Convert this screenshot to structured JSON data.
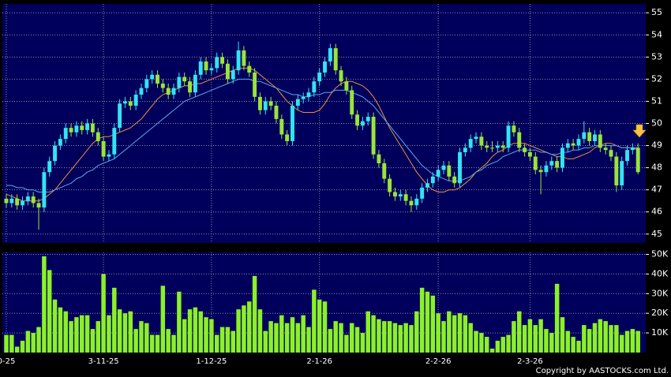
{
  "chart_data": {
    "type": "candlestick",
    "categories": [
      "0-25",
      null,
      null,
      null,
      null,
      null,
      null,
      null,
      null,
      null,
      null,
      null,
      null,
      null,
      null,
      null,
      null,
      null,
      "3-11-25",
      null,
      null,
      null,
      null,
      null,
      null,
      null,
      null,
      null,
      null,
      null,
      null,
      null,
      null,
      null,
      null,
      null,
      null,
      null,
      "1-12-25",
      null,
      null,
      null,
      null,
      null,
      null,
      null,
      null,
      null,
      null,
      null,
      null,
      null,
      null,
      null,
      null,
      null,
      null,
      null,
      "2-1-26",
      null,
      null,
      null,
      null,
      null,
      null,
      null,
      null,
      null,
      null,
      null,
      null,
      null,
      null,
      null,
      null,
      null,
      null,
      null,
      null,
      null,
      "2-2-26",
      null,
      null,
      null,
      null,
      null,
      null,
      null,
      null,
      null,
      null,
      null,
      null,
      null,
      null,
      null,
      null,
      "2-3-26",
      null,
      null,
      null,
      null,
      null,
      null,
      null,
      null,
      null,
      null,
      null,
      null,
      null,
      null,
      null,
      null,
      null,
      null,
      null,
      null
    ],
    "ohlc": [
      [
        46.6,
        46.8,
        46.2,
        46.4
      ],
      [
        46.4,
        46.8,
        46.2,
        46.6
      ],
      [
        46.6,
        46.8,
        46.1,
        46.3
      ],
      [
        46.3,
        46.7,
        46.1,
        46.5
      ],
      [
        46.5,
        46.9,
        46.3,
        46.7
      ],
      [
        46.7,
        46.9,
        46.2,
        46.4
      ],
      [
        46.4,
        46.6,
        45.2,
        46.2
      ],
      [
        46.2,
        48.0,
        46.0,
        47.8
      ],
      [
        47.8,
        48.5,
        47.6,
        48.3
      ],
      [
        48.3,
        49.2,
        48.1,
        49.0
      ],
      [
        49.0,
        49.5,
        48.8,
        49.3
      ],
      [
        49.3,
        50.0,
        49.1,
        49.8
      ],
      [
        49.8,
        50.0,
        49.4,
        49.6
      ],
      [
        49.6,
        50.1,
        49.4,
        49.9
      ],
      [
        49.9,
        50.1,
        49.5,
        49.7
      ],
      [
        49.7,
        50.2,
        49.5,
        50.0
      ],
      [
        50.0,
        50.2,
        49.4,
        49.6
      ],
      [
        49.6,
        49.8,
        49.0,
        49.2
      ],
      [
        49.2,
        49.4,
        48.3,
        48.5
      ],
      [
        48.5,
        48.8,
        48.3,
        48.6
      ],
      [
        48.6,
        50.0,
        48.4,
        49.8
      ],
      [
        49.8,
        51.1,
        49.6,
        50.9
      ],
      [
        50.9,
        51.2,
        50.7,
        51.0
      ],
      [
        51.0,
        51.2,
        50.6,
        50.8
      ],
      [
        50.8,
        51.5,
        50.6,
        51.3
      ],
      [
        51.3,
        51.8,
        51.1,
        51.6
      ],
      [
        51.6,
        52.2,
        51.4,
        52.0
      ],
      [
        52.0,
        52.4,
        51.8,
        52.2
      ],
      [
        52.2,
        52.4,
        51.6,
        51.8
      ],
      [
        51.8,
        52.0,
        51.4,
        51.6
      ],
      [
        51.6,
        51.8,
        51.1,
        51.3
      ],
      [
        51.3,
        51.8,
        51.1,
        51.6
      ],
      [
        51.6,
        52.3,
        51.4,
        52.1
      ],
      [
        52.1,
        52.3,
        51.7,
        51.9
      ],
      [
        51.9,
        52.1,
        51.2,
        51.4
      ],
      [
        51.4,
        52.4,
        51.2,
        52.2
      ],
      [
        52.2,
        53.0,
        52.0,
        52.8
      ],
      [
        52.8,
        53.0,
        52.2,
        52.4
      ],
      [
        52.4,
        52.7,
        52.2,
        52.5
      ],
      [
        52.5,
        53.2,
        52.3,
        53.0
      ],
      [
        53.0,
        53.2,
        52.5,
        52.7
      ],
      [
        52.7,
        52.9,
        51.8,
        52.0
      ],
      [
        52.0,
        52.6,
        51.8,
        52.4
      ],
      [
        52.4,
        53.7,
        52.2,
        53.3
      ],
      [
        53.3,
        53.5,
        52.4,
        52.6
      ],
      [
        52.6,
        52.8,
        52.1,
        52.3
      ],
      [
        52.3,
        52.5,
        51.0,
        51.2
      ],
      [
        51.2,
        51.4,
        50.4,
        50.6
      ],
      [
        50.6,
        51.2,
        50.4,
        51.0
      ],
      [
        51.0,
        51.2,
        50.6,
        50.8
      ],
      [
        50.8,
        51.0,
        50.0,
        50.2
      ],
      [
        50.2,
        50.4,
        49.3,
        49.5
      ],
      [
        49.5,
        49.7,
        49.0,
        49.2
      ],
      [
        49.2,
        51.0,
        49.0,
        50.8
      ],
      [
        50.8,
        51.3,
        50.6,
        51.1
      ],
      [
        51.1,
        51.4,
        50.9,
        51.2
      ],
      [
        51.2,
        51.6,
        51.0,
        51.4
      ],
      [
        51.4,
        52.1,
        51.2,
        51.9
      ],
      [
        51.9,
        52.5,
        51.7,
        52.3
      ],
      [
        52.3,
        53.0,
        52.1,
        52.8
      ],
      [
        52.8,
        53.6,
        52.6,
        53.4
      ],
      [
        53.4,
        53.6,
        52.2,
        52.4
      ],
      [
        52.4,
        52.6,
        51.7,
        51.9
      ],
      [
        51.9,
        52.1,
        51.3,
        51.5
      ],
      [
        51.5,
        51.7,
        50.2,
        50.4
      ],
      [
        50.4,
        50.6,
        49.7,
        49.9
      ],
      [
        49.9,
        50.3,
        49.7,
        50.1
      ],
      [
        50.1,
        50.5,
        49.9,
        50.3
      ],
      [
        50.3,
        50.5,
        48.4,
        48.6
      ],
      [
        48.6,
        48.8,
        48.0,
        48.2
      ],
      [
        48.2,
        48.4,
        47.3,
        47.5
      ],
      [
        47.5,
        47.7,
        46.7,
        46.9
      ],
      [
        46.9,
        47.1,
        46.5,
        46.7
      ],
      [
        46.7,
        47.0,
        46.5,
        46.8
      ],
      [
        46.8,
        47.0,
        46.3,
        46.5
      ],
      [
        46.5,
        46.7,
        46.0,
        46.3
      ],
      [
        46.3,
        46.8,
        46.1,
        46.6
      ],
      [
        46.6,
        47.3,
        46.4,
        47.1
      ],
      [
        47.1,
        47.5,
        46.9,
        47.3
      ],
      [
        47.3,
        47.8,
        47.1,
        47.6
      ],
      [
        47.6,
        48.1,
        47.4,
        47.9
      ],
      [
        47.9,
        48.3,
        47.7,
        48.1
      ],
      [
        48.1,
        48.3,
        47.4,
        47.6
      ],
      [
        47.6,
        47.8,
        47.1,
        47.3
      ],
      [
        47.3,
        48.9,
        47.1,
        48.7
      ],
      [
        48.7,
        49.1,
        48.5,
        48.9
      ],
      [
        48.9,
        49.5,
        48.7,
        49.3
      ],
      [
        49.3,
        49.6,
        49.1,
        49.4
      ],
      [
        49.4,
        49.6,
        48.8,
        49.0
      ],
      [
        49.0,
        49.2,
        48.7,
        48.9
      ],
      [
        48.9,
        49.2,
        48.7,
        48.9
      ],
      [
        48.9,
        49.2,
        48.7,
        49.0
      ],
      [
        49.0,
        49.2,
        48.7,
        48.9
      ],
      [
        48.9,
        50.1,
        48.7,
        49.9
      ],
      [
        49.9,
        50.1,
        49.4,
        49.6
      ],
      [
        49.6,
        49.8,
        48.7,
        48.9
      ],
      [
        48.9,
        49.1,
        48.5,
        48.7
      ],
      [
        48.7,
        48.9,
        48.3,
        48.5
      ],
      [
        48.5,
        48.7,
        47.7,
        47.9
      ],
      [
        47.9,
        48.1,
        46.8,
        47.8
      ],
      [
        47.8,
        48.3,
        47.6,
        48.1
      ],
      [
        48.1,
        48.5,
        47.9,
        48.3
      ],
      [
        48.3,
        48.5,
        47.8,
        48.0
      ],
      [
        48.0,
        49.1,
        47.8,
        48.9
      ],
      [
        48.9,
        49.3,
        48.7,
        49.1
      ],
      [
        49.1,
        49.3,
        48.8,
        49.0
      ],
      [
        49.0,
        49.5,
        48.8,
        49.3
      ],
      [
        49.3,
        50.1,
        49.1,
        49.6
      ],
      [
        49.6,
        49.8,
        49.0,
        49.2
      ],
      [
        49.2,
        49.7,
        49.0,
        49.5
      ],
      [
        49.5,
        49.7,
        48.7,
        48.9
      ],
      [
        48.9,
        49.1,
        48.6,
        48.8
      ],
      [
        48.8,
        49.0,
        48.3,
        48.5
      ],
      [
        48.5,
        48.7,
        46.9,
        47.2
      ],
      [
        47.2,
        48.5,
        47.0,
        48.3
      ],
      [
        48.3,
        49.0,
        48.1,
        48.8
      ],
      [
        48.8,
        49.1,
        48.6,
        48.9
      ],
      [
        48.9,
        49.1,
        47.7,
        47.8
      ]
    ],
    "up_color": "#33e3f2",
    "down_color": "#9be43a",
    "lines": [
      {
        "color": "#f08c3c",
        "values": [
          46.8,
          46.7,
          46.6,
          46.5,
          46.5,
          46.5,
          46.5,
          46.6,
          46.8,
          47.0,
          47.3,
          47.6,
          47.9,
          48.2,
          48.5,
          48.8,
          49.1,
          49.3,
          49.4,
          49.4,
          49.5,
          49.6,
          49.7,
          49.8,
          50.0,
          50.2,
          50.5,
          50.8,
          51.1,
          51.3,
          51.4,
          51.5,
          51.6,
          51.7,
          51.7,
          51.8,
          51.8,
          51.9,
          52.0,
          52.1,
          52.2,
          52.3,
          52.4,
          52.5,
          52.5,
          52.5,
          52.4,
          52.2,
          52.0,
          51.8,
          51.6,
          51.3,
          51.0,
          50.8,
          50.6,
          50.5,
          50.5,
          50.5,
          50.6,
          50.9,
          51.3,
          51.6,
          51.8,
          51.9,
          51.9,
          51.8,
          51.7,
          51.5,
          51.2,
          50.8,
          50.3,
          49.8,
          49.4,
          49.0,
          48.6,
          48.2,
          47.8,
          47.5,
          47.2,
          47.0,
          46.9,
          46.9,
          47.0,
          47.0,
          47.1,
          47.3,
          47.5,
          47.8,
          48.0,
          48.2,
          48.5,
          48.7,
          48.8,
          49.0,
          49.1,
          49.1,
          49.1,
          49.0,
          48.9,
          48.8,
          48.7,
          48.6,
          48.5,
          48.5,
          48.4,
          48.4,
          48.5,
          48.6,
          48.7,
          48.9,
          49.0,
          49.1,
          49.1,
          49.0,
          48.9,
          48.9,
          48.9,
          48.8
        ]
      },
      {
        "color": "#5aa8e6",
        "values": [
          47.2,
          47.2,
          47.1,
          47.1,
          47.0,
          47.0,
          46.9,
          46.9,
          46.9,
          47.0,
          47.1,
          47.2,
          47.3,
          47.5,
          47.6,
          47.8,
          47.9,
          48.1,
          48.2,
          48.3,
          48.4,
          48.6,
          48.8,
          49.0,
          49.2,
          49.4,
          49.6,
          49.8,
          50.0,
          50.2,
          50.4,
          50.6,
          50.8,
          51.0,
          51.1,
          51.2,
          51.3,
          51.4,
          51.5,
          51.6,
          51.7,
          51.8,
          51.9,
          52.0,
          52.0,
          52.0,
          51.9,
          51.9,
          51.8,
          51.7,
          51.6,
          51.5,
          51.4,
          51.3,
          51.3,
          51.2,
          51.2,
          51.3,
          51.3,
          51.4,
          51.4,
          51.5,
          51.5,
          51.5,
          51.4,
          51.3,
          51.2,
          51.0,
          50.8,
          50.5,
          50.2,
          49.9,
          49.6,
          49.3,
          49.0,
          48.7,
          48.4,
          48.1,
          47.9,
          47.7,
          47.6,
          47.5,
          47.4,
          47.4,
          47.4,
          47.5,
          47.6,
          47.8,
          47.9,
          48.1,
          48.2,
          48.3,
          48.5,
          48.6,
          48.7,
          48.8,
          48.8,
          48.8,
          48.8,
          48.7,
          48.7,
          48.6,
          48.6,
          48.7,
          48.7,
          48.8,
          48.8,
          48.9,
          48.9,
          49.0,
          49.0,
          49.0,
          49.0,
          49.0,
          48.9,
          48.9,
          48.9,
          48.9
        ]
      }
    ],
    "ylim": [
      44.6,
      55.4
    ],
    "yticks": [
      45,
      46,
      47,
      48,
      49,
      50,
      51,
      52,
      53,
      54,
      55
    ],
    "grid": true,
    "volume": {
      "color": "#8cf028",
      "values": [
        9000,
        9000,
        3000,
        6000,
        11000,
        10000,
        13000,
        49000,
        42000,
        27000,
        23000,
        21000,
        16000,
        18000,
        19000,
        19000,
        12000,
        16000,
        40000,
        19000,
        33000,
        22000,
        20000,
        21000,
        12000,
        16000,
        15000,
        9000,
        9000,
        34000,
        12000,
        9000,
        31000,
        17000,
        22000,
        23000,
        21000,
        18000,
        17000,
        9000,
        13000,
        13000,
        11000,
        22000,
        24000,
        26000,
        39000,
        22000,
        11000,
        16000,
        15000,
        19000,
        15000,
        18000,
        15000,
        19000,
        13000,
        32000,
        27000,
        26000,
        12000,
        16000,
        15000,
        9000,
        15000,
        13000,
        10000,
        21000,
        19000,
        17000,
        16000,
        16000,
        15000,
        14000,
        15000,
        14000,
        21000,
        33000,
        31000,
        29000,
        20000,
        16000,
        21000,
        19000,
        20000,
        19000,
        15000,
        11000,
        10000,
        8000,
        2000,
        6000,
        8000,
        9000,
        16000,
        21000,
        14000,
        17000,
        14000,
        17000,
        12000,
        10000,
        35000,
        18000,
        11000,
        8000,
        6000,
        14000,
        12000,
        15000,
        17000,
        16000,
        14000,
        14000,
        9000,
        11000,
        12000,
        11000
      ],
      "ylim": [
        0,
        51000
      ],
      "yticks": [
        {
          "value": 10000,
          "label": "10K"
        },
        {
          "value": 20000,
          "label": "20K"
        },
        {
          "value": 30000,
          "label": "30K"
        },
        {
          "value": 40000,
          "label": "40K"
        },
        {
          "value": 50000,
          "label": "50K"
        }
      ]
    },
    "copyright": "Copyright by AASTOCKS.com Ltd."
  }
}
